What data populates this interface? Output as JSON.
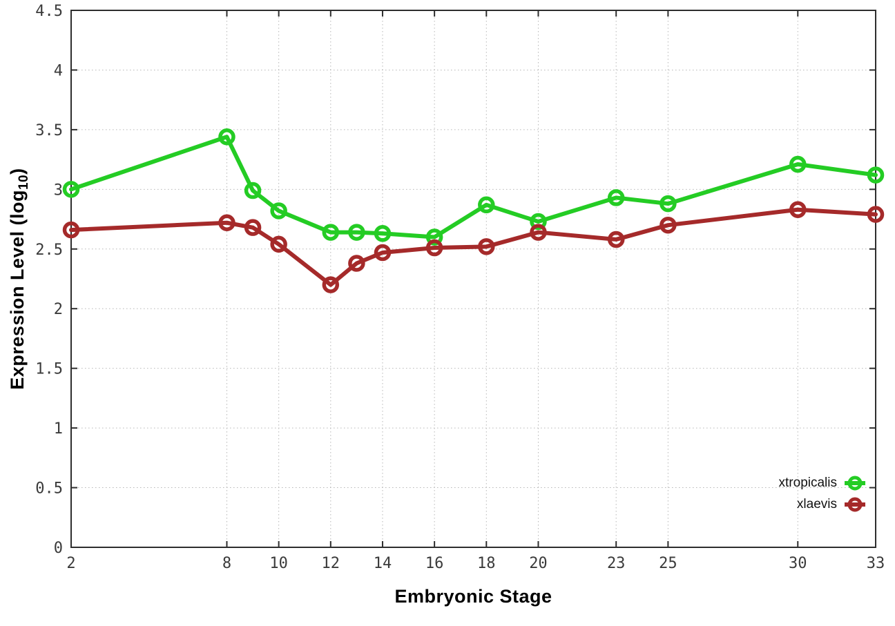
{
  "colors": {
    "background": "#ffffff",
    "axis": "#2d2d2d",
    "grid": "#b6b6b6",
    "tick_text": "#3a3a3a",
    "xtropicalis": "#24cc24",
    "xlaevis": "#a52a2a"
  },
  "chart_data": {
    "type": "line",
    "title": "",
    "xlabel": "Embryonic Stage",
    "ylabel": "Expression Level (log10)",
    "ylabel_rich": {
      "text": "Expression Level (log",
      "subscript": "10",
      "close": ")"
    },
    "xlim": [
      2,
      33
    ],
    "ylim": [
      0,
      4.5
    ],
    "grid": true,
    "legend_position": "inside-bottom-right",
    "xticks": [
      2,
      8,
      10,
      12,
      14,
      16,
      18,
      20,
      23,
      25,
      30,
      33
    ],
    "yticks": [
      0,
      0.5,
      1,
      1.5,
      2,
      2.5,
      3,
      3.5,
      4,
      4.5
    ],
    "ytick_labels": [
      "0",
      "0.5",
      "1",
      "1.5",
      "2",
      "2.5",
      "3",
      "3.5",
      "4",
      "4.5"
    ],
    "x": [
      2,
      8,
      9,
      10,
      12,
      13,
      14,
      16,
      18,
      20,
      23,
      25,
      30,
      33
    ],
    "series": [
      {
        "name": "xtropicalis",
        "color": "#24cc24",
        "values": [
          3.0,
          3.44,
          2.99,
          2.82,
          2.64,
          2.64,
          2.63,
          2.6,
          2.87,
          2.73,
          2.93,
          2.88,
          3.21,
          3.12
        ]
      },
      {
        "name": "xlaevis",
        "color": "#a52a2a",
        "values": [
          2.66,
          2.72,
          2.68,
          2.54,
          2.2,
          2.38,
          2.47,
          2.51,
          2.52,
          2.64,
          2.58,
          2.7,
          2.83,
          2.79
        ]
      }
    ]
  }
}
